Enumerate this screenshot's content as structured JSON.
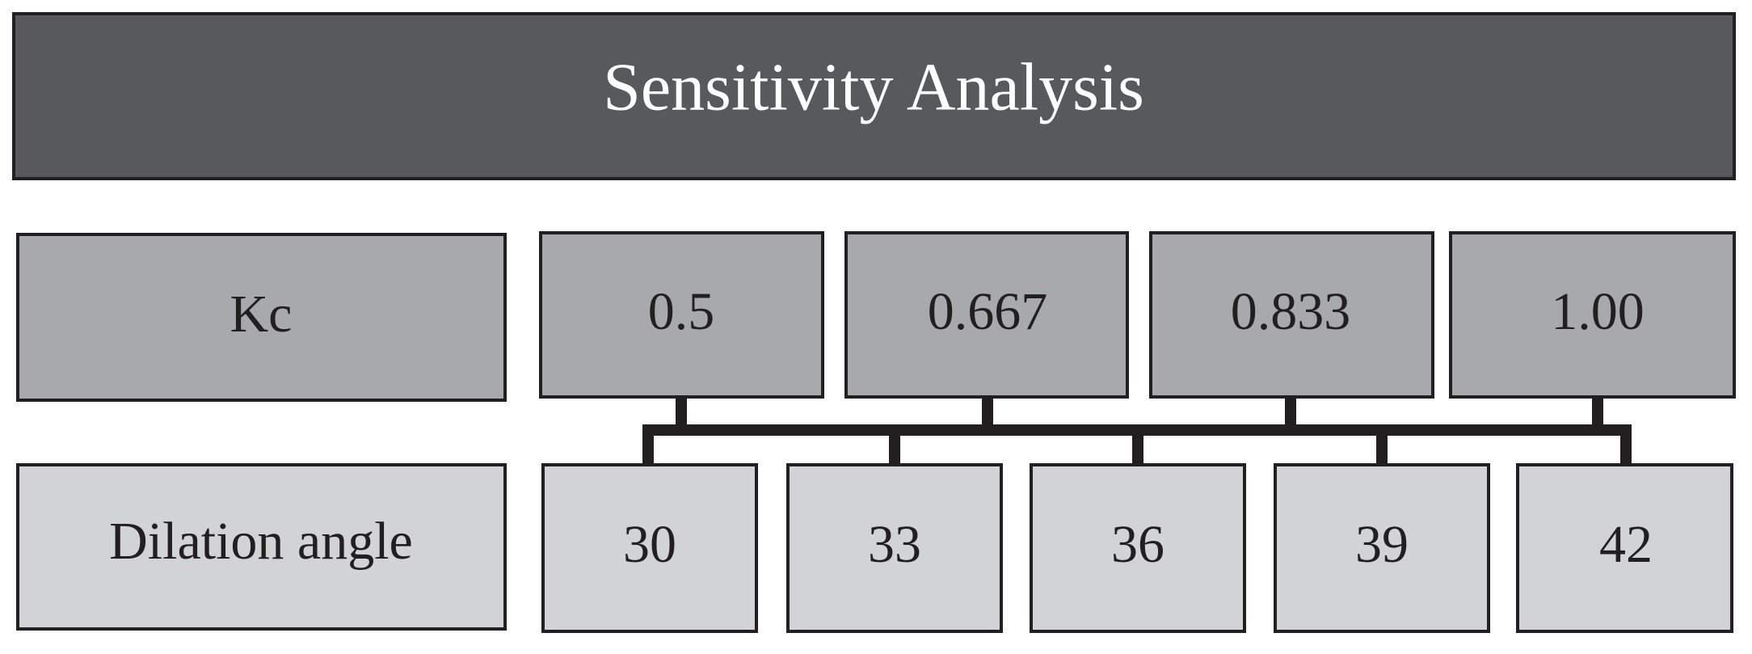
{
  "header": {
    "title": "Sensitivity Analysis"
  },
  "rows": [
    {
      "label": "Kc",
      "values": [
        "0.5",
        "0.667",
        "0.833",
        "1.00"
      ]
    },
    {
      "label": "Dilation angle",
      "values": [
        "30",
        "33",
        "36",
        "39",
        "42"
      ]
    }
  ]
}
